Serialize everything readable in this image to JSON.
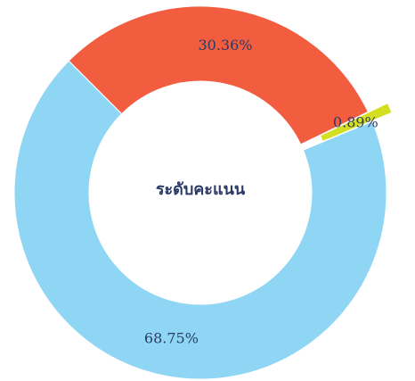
{
  "chart_data": {
    "type": "donut",
    "title": "ระดับคะแนน",
    "values": [
      30.36,
      0.89,
      68.75
    ],
    "value_labels": [
      "30.36%",
      "0.89%",
      "68.75%"
    ],
    "colors": [
      "#f25c3f",
      "#d4df22",
      "#8fd6f5"
    ],
    "explode": [
      false,
      true,
      false
    ]
  }
}
